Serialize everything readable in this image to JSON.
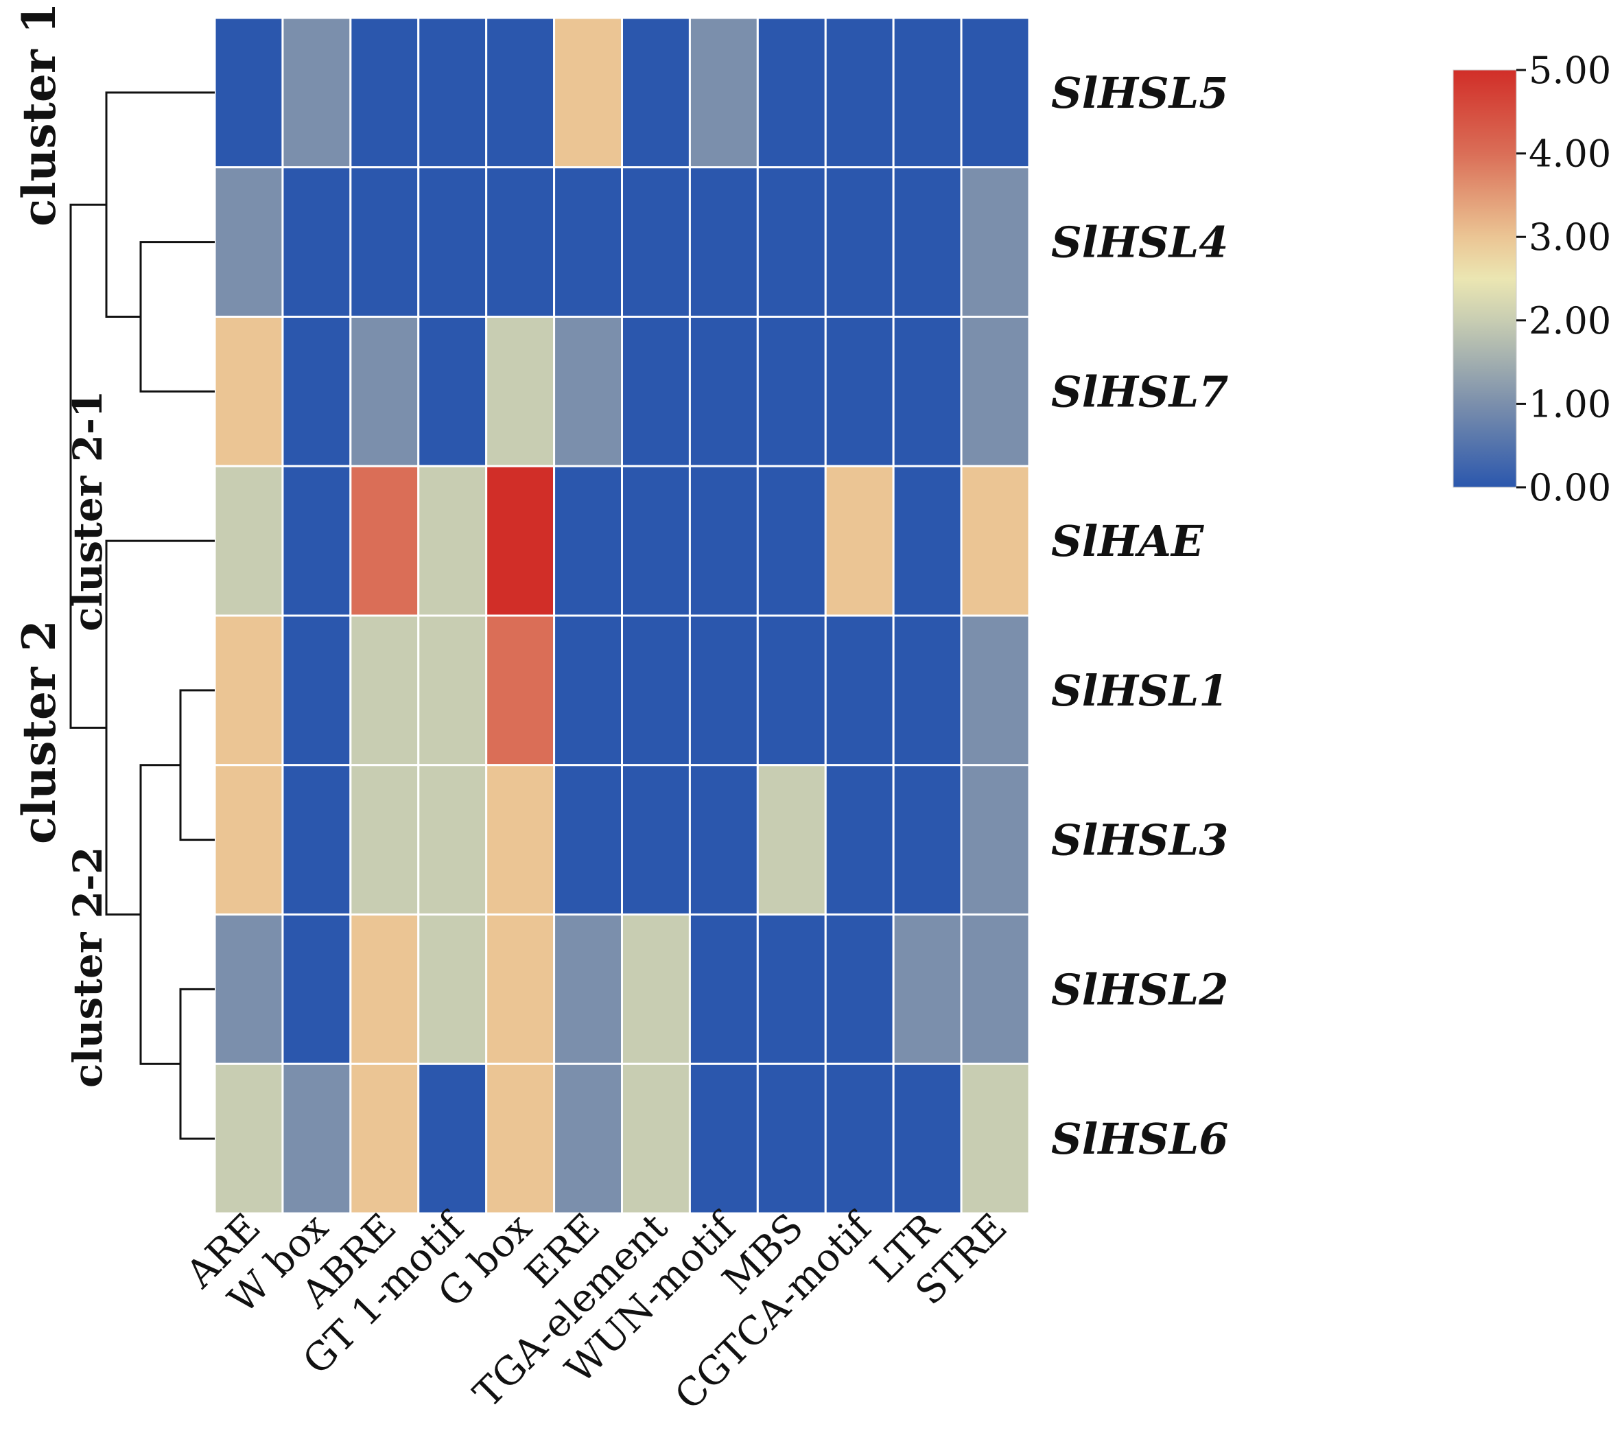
{
  "chart_data": {
    "type": "heatmap",
    "columns": [
      "ARE",
      "W box",
      "ABRE",
      "GT 1-motif",
      "G box",
      "ERE",
      "TGA-element",
      "WUN-motif",
      "MBS",
      "CGTCA-motif",
      "LTR",
      "STRE"
    ],
    "rows": [
      "SlHSL5",
      "SlHSL4",
      "SlHSL7",
      "SlHAE",
      "SlHSL1",
      "SlHSL3",
      "SlHSL2",
      "SlHSL6"
    ],
    "values": [
      [
        0,
        1,
        0,
        0,
        0,
        3,
        0,
        1,
        0,
        0,
        0,
        0
      ],
      [
        1,
        0,
        0,
        0,
        0,
        0,
        0,
        0,
        0,
        0,
        0,
        1
      ],
      [
        3,
        0,
        1,
        0,
        2,
        1,
        0,
        0,
        0,
        0,
        0,
        1
      ],
      [
        2,
        0,
        4,
        2,
        5,
        0,
        0,
        0,
        0,
        3,
        0,
        3
      ],
      [
        3,
        0,
        2,
        2,
        4,
        0,
        0,
        0,
        0,
        0,
        0,
        1
      ],
      [
        3,
        0,
        2,
        2,
        3,
        0,
        0,
        0,
        2,
        0,
        0,
        1
      ],
      [
        1,
        0,
        3,
        2,
        3,
        1,
        2,
        0,
        0,
        0,
        1,
        1
      ],
      [
        2,
        1,
        3,
        0,
        3,
        1,
        2,
        0,
        0,
        0,
        0,
        2
      ]
    ],
    "colorscale": {
      "min": 0,
      "max": 5,
      "stops": [
        {
          "value": 0,
          "color": "#2b57ad"
        },
        {
          "value": 1,
          "color": "#7b8fac"
        },
        {
          "value": 2,
          "color": "#c8cdb2"
        },
        {
          "value": 2.5,
          "color": "#ebe6b2"
        },
        {
          "value": 3,
          "color": "#ebc594"
        },
        {
          "value": 4,
          "color": "#da6e57"
        },
        {
          "value": 5,
          "color": "#d12e28"
        }
      ],
      "tick_labels": [
        "5.00",
        "4.00",
        "3.00",
        "2.00",
        "1.00",
        "0.00"
      ]
    },
    "clusters": {
      "cluster1": "cluster 1",
      "cluster2": "cluster 2",
      "cluster2_1": "cluster 2-1",
      "cluster2_2": "cluster 2-2"
    },
    "dendrogram": "((SlHSL5,(SlHSL4,SlHSL7)),(SlHAE,((SlHSL1,SlHSL3),(SlHSL2,SlHSL6))))"
  }
}
